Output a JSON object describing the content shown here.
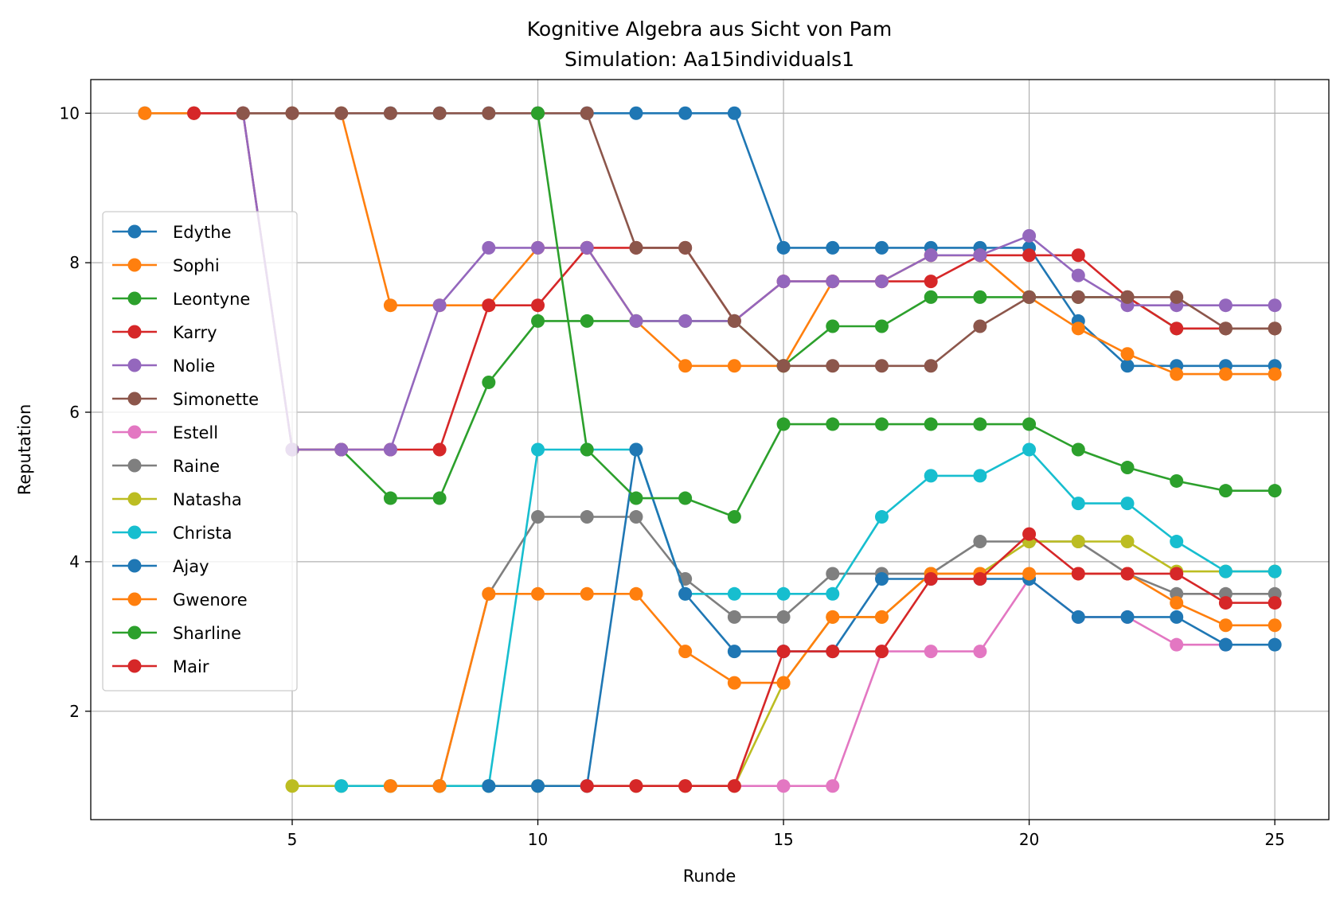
{
  "chart_data": {
    "type": "line",
    "title": "Kognitive Algebra aus Sicht von Pam",
    "subtitle": "Simulation: Aa15individuals1",
    "xlabel": "Runde",
    "ylabel": "Reputation",
    "xlim": [
      0.9,
      26.1
    ],
    "ylim": [
      0.55,
      10.45
    ],
    "xticks": [
      5,
      10,
      15,
      20,
      25
    ],
    "yticks": [
      2,
      4,
      6,
      8,
      10
    ],
    "grid": true,
    "legend_position": "center-left",
    "series": [
      {
        "name": "Edythe",
        "color": "#1f77b4",
        "x": [
          2,
          3,
          4,
          5,
          6,
          7,
          8,
          9,
          10,
          11,
          12,
          13,
          14,
          15,
          16,
          17,
          18,
          19,
          20,
          21,
          22,
          23,
          24,
          25
        ],
        "y": [
          10,
          10,
          10,
          10,
          10,
          10,
          10,
          10,
          10,
          10,
          10,
          10,
          10,
          8.2,
          8.2,
          8.2,
          8.2,
          8.2,
          8.2,
          7.22,
          6.62,
          6.62,
          6.62,
          6.62
        ]
      },
      {
        "name": "Sophi",
        "color": "#ff7f0e",
        "x": [
          2,
          3,
          4,
          5,
          6,
          7,
          8,
          9,
          10,
          11,
          12,
          13,
          14,
          15,
          16,
          17,
          18,
          19,
          20,
          21,
          22,
          23,
          24,
          25
        ],
        "y": [
          10,
          10,
          10,
          10,
          10,
          7.43,
          7.43,
          7.43,
          8.2,
          8.2,
          7.22,
          6.62,
          6.62,
          6.62,
          7.75,
          7.75,
          8.1,
          8.1,
          7.54,
          7.12,
          6.78,
          6.51,
          6.51,
          6.51
        ]
      },
      {
        "name": "Leontyne",
        "color": "#2ca02c",
        "x": [
          5,
          6,
          7,
          8,
          9,
          10,
          11,
          12,
          13,
          14,
          15,
          16,
          17,
          18,
          19,
          20,
          21,
          22,
          23,
          24,
          25
        ],
        "y": [
          5.5,
          5.5,
          4.85,
          4.85,
          6.4,
          7.22,
          7.22,
          7.22,
          7.22,
          7.22,
          6.62,
          7.15,
          7.15,
          7.54,
          7.54,
          7.54,
          7.54,
          7.54,
          7.12,
          7.12,
          7.12
        ]
      },
      {
        "name": "Karry",
        "color": "#d62728",
        "x": [
          3,
          4,
          5,
          6,
          7,
          8,
          9,
          10,
          11,
          12,
          13,
          14,
          15,
          16,
          17,
          18,
          19,
          20,
          21,
          22,
          23,
          24,
          25
        ],
        "y": [
          10,
          10,
          5.5,
          5.5,
          5.5,
          5.5,
          7.43,
          7.43,
          8.2,
          8.2,
          8.2,
          7.22,
          7.75,
          7.75,
          7.75,
          7.75,
          8.1,
          8.1,
          8.1,
          7.54,
          7.12,
          7.12,
          7.12
        ]
      },
      {
        "name": "Nolie",
        "color": "#9467bd",
        "x": [
          4,
          5,
          6,
          7,
          8,
          9,
          10,
          11,
          12,
          13,
          14,
          15,
          16,
          17,
          18,
          19,
          20,
          21,
          22,
          23,
          24,
          25
        ],
        "y": [
          10,
          5.5,
          5.5,
          5.5,
          7.43,
          8.2,
          8.2,
          8.2,
          7.22,
          7.22,
          7.22,
          7.75,
          7.75,
          7.75,
          8.1,
          8.1,
          8.36,
          7.83,
          7.43,
          7.43,
          7.43,
          7.43
        ]
      },
      {
        "name": "Simonette",
        "color": "#8c564b",
        "x": [
          4,
          5,
          6,
          7,
          8,
          9,
          10,
          11,
          12,
          13,
          14,
          15,
          16,
          17,
          18,
          19,
          20,
          21,
          22,
          23,
          24,
          25
        ],
        "y": [
          10,
          10,
          10,
          10,
          10,
          10,
          10,
          10,
          8.2,
          8.2,
          7.22,
          6.62,
          6.62,
          6.62,
          6.62,
          7.15,
          7.54,
          7.54,
          7.54,
          7.54,
          7.12,
          7.12
        ]
      },
      {
        "name": "Estell",
        "color": "#e377c2",
        "x": [
          11,
          12,
          13,
          14,
          15,
          16,
          17,
          18,
          19,
          20,
          21,
          22,
          23,
          24
        ],
        "y": [
          1,
          1,
          1,
          1,
          1,
          1,
          2.8,
          2.8,
          2.8,
          3.77,
          3.26,
          3.26,
          2.89,
          2.89
        ]
      },
      {
        "name": "Raine",
        "color": "#7f7f7f",
        "x": [
          8,
          9,
          10,
          11,
          12,
          13,
          14,
          15,
          16,
          17,
          18,
          19,
          20,
          21,
          22,
          23,
          24,
          25
        ],
        "y": [
          1,
          3.57,
          4.6,
          4.6,
          4.6,
          3.77,
          3.26,
          3.26,
          3.84,
          3.84,
          3.84,
          4.27,
          4.27,
          4.27,
          3.84,
          3.57,
          3.57,
          3.57
        ]
      },
      {
        "name": "Natasha",
        "color": "#bcbd22",
        "x": [
          5,
          6,
          7,
          8,
          9,
          10,
          11,
          12,
          13,
          14,
          15,
          16,
          17,
          18,
          19,
          20,
          21,
          22,
          23,
          24,
          25
        ],
        "y": [
          1,
          1,
          1,
          1,
          1,
          1,
          1,
          1,
          1,
          1,
          2.38,
          3.26,
          3.26,
          3.84,
          3.84,
          4.27,
          4.27,
          4.27,
          3.87,
          3.87,
          3.87
        ]
      },
      {
        "name": "Christa",
        "color": "#17becf",
        "x": [
          6,
          7,
          8,
          9,
          10,
          11,
          12,
          13,
          14,
          15,
          16,
          17,
          18,
          19,
          20,
          21,
          22,
          23,
          24,
          25
        ],
        "y": [
          1,
          1,
          1,
          1,
          5.5,
          5.5,
          5.5,
          3.57,
          3.57,
          3.57,
          3.57,
          4.6,
          5.15,
          5.15,
          5.5,
          4.78,
          4.78,
          4.27,
          3.87,
          3.87
        ]
      },
      {
        "name": "Ajay",
        "color": "#1f77b4",
        "x": [
          9,
          10,
          11,
          12,
          13,
          14,
          15,
          16,
          17,
          18,
          19,
          20,
          21,
          22,
          23,
          24,
          25
        ],
        "y": [
          1,
          1,
          1,
          5.5,
          3.57,
          2.8,
          2.8,
          2.8,
          3.77,
          3.77,
          3.77,
          3.77,
          3.26,
          3.26,
          3.26,
          2.89,
          2.89
        ]
      },
      {
        "name": "Gwenore",
        "color": "#ff7f0e",
        "x": [
          7,
          8,
          9,
          10,
          11,
          12,
          13,
          14,
          15,
          16,
          17,
          18,
          19,
          20,
          21,
          22,
          23,
          24,
          25
        ],
        "y": [
          1,
          1,
          3.57,
          3.57,
          3.57,
          3.57,
          2.8,
          2.38,
          2.38,
          3.26,
          3.26,
          3.84,
          3.84,
          3.84,
          3.84,
          3.84,
          3.45,
          3.15,
          3.15
        ]
      },
      {
        "name": "Sharline",
        "color": "#2ca02c",
        "x": [
          10,
          11,
          12,
          13,
          14,
          15,
          16,
          17,
          18,
          19,
          20,
          21,
          22,
          23,
          24,
          25
        ],
        "y": [
          10,
          5.5,
          4.85,
          4.85,
          4.6,
          5.84,
          5.84,
          5.84,
          5.84,
          5.84,
          5.84,
          5.5,
          5.26,
          5.08,
          4.95,
          4.95
        ]
      },
      {
        "name": "Mair",
        "color": "#d62728",
        "x": [
          11,
          12,
          13,
          14,
          15,
          16,
          17,
          18,
          19,
          20,
          21,
          22,
          23,
          24,
          25
        ],
        "y": [
          1,
          1,
          1,
          1,
          2.8,
          2.8,
          2.8,
          3.77,
          3.77,
          4.37,
          3.84,
          3.84,
          3.84,
          3.45,
          3.45
        ]
      }
    ]
  }
}
